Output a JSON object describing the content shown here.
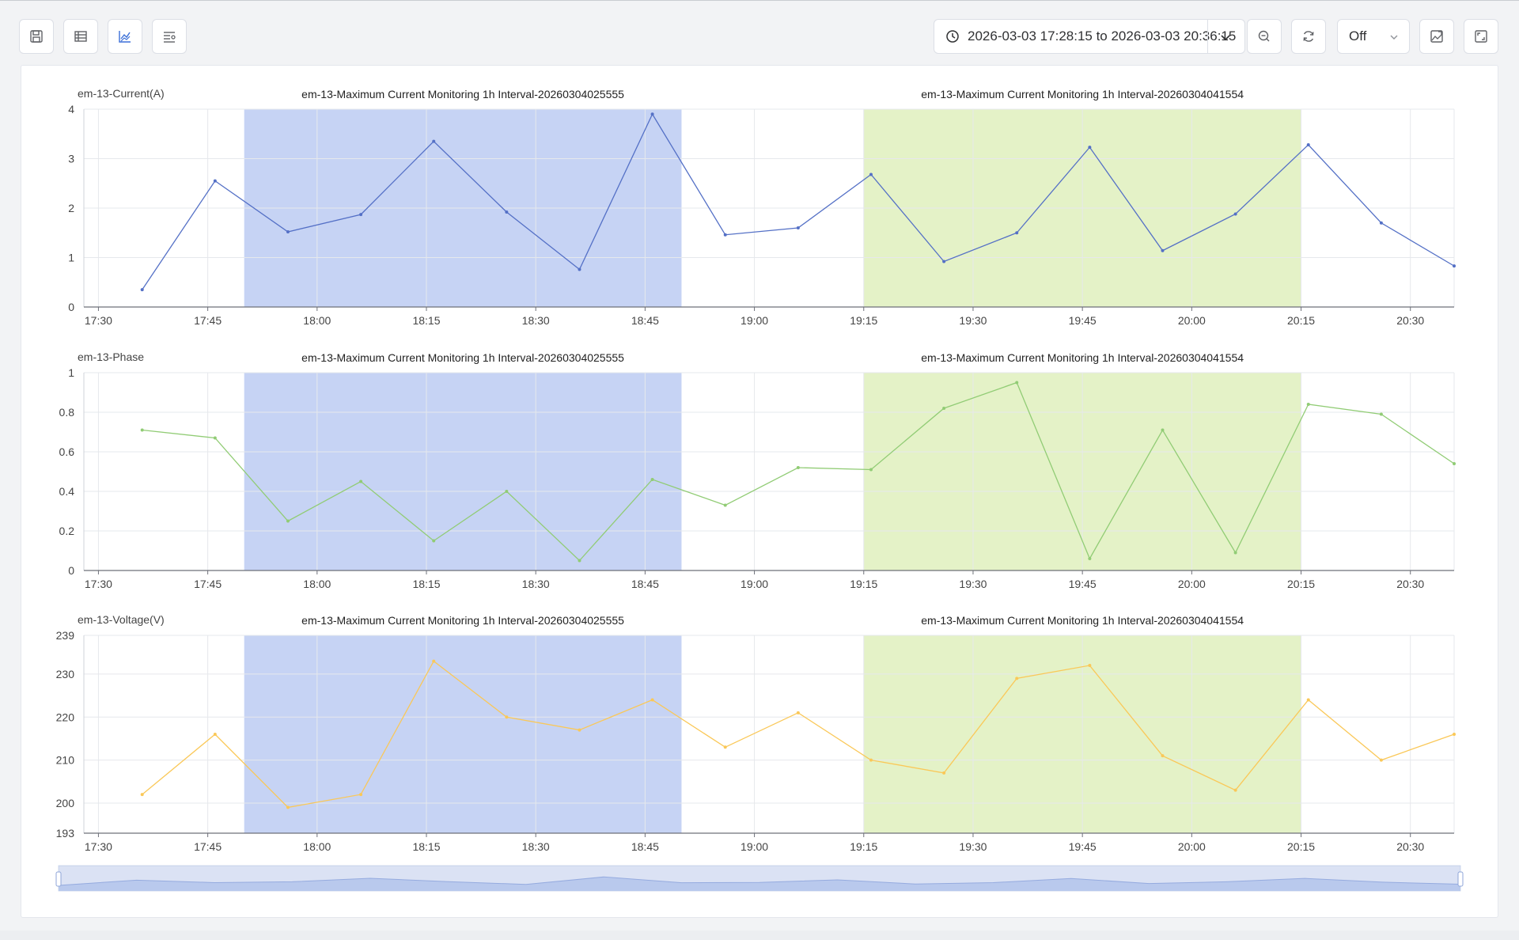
{
  "toolbar": {
    "buttons": [
      "save-icon",
      "table-icon",
      "line-chart-icon",
      "list-settings-icon"
    ],
    "time_range": "2026-03-03 17:28:15 to 2026-03-03 20:36:15",
    "refresh_interval": "Off",
    "right_buttons": [
      "zoom-out-icon",
      "refresh-icon",
      "export-image-icon",
      "fullscreen-icon"
    ]
  },
  "chart_data": [
    {
      "type": "line",
      "ylabel": "em-13-Current(A)",
      "ylim": [
        0,
        4
      ],
      "yticks": [
        "0",
        "1",
        "2",
        "3",
        "4"
      ],
      "xlim": [
        "17:28",
        "20:36"
      ],
      "xticks": [
        "17:30",
        "17:45",
        "18:00",
        "18:15",
        "18:30",
        "18:45",
        "19:00",
        "19:15",
        "19:30",
        "19:45",
        "20:00",
        "20:15",
        "20:30"
      ],
      "grid": true,
      "color": "#5470c6",
      "x": [
        "17:36",
        "17:46",
        "17:56",
        "18:06",
        "18:16",
        "18:26",
        "18:36",
        "18:46",
        "18:56",
        "19:06",
        "19:16",
        "19:26",
        "19:36",
        "19:46",
        "19:56",
        "20:06",
        "20:16",
        "20:26",
        "20:36"
      ],
      "values": [
        0.35,
        2.55,
        1.52,
        1.87,
        3.35,
        1.92,
        0.76,
        3.9,
        1.46,
        1.6,
        2.68,
        0.92,
        1.5,
        3.23,
        1.14,
        1.88,
        3.28,
        1.7,
        0.83
      ],
      "mark_areas": [
        {
          "label": "em-13-Maximum Current Monitoring 1h Interval-20260304025555",
          "from": "17:50",
          "to": "18:50",
          "color": "#c6d3f4"
        },
        {
          "label": "em-13-Maximum Current Monitoring 1h Interval-20260304041554",
          "from": "19:15",
          "to": "20:15",
          "color": "#e4f2c7"
        }
      ]
    },
    {
      "type": "line",
      "ylabel": "em-13-Phase",
      "ylim": [
        0,
        1
      ],
      "yticks": [
        "0",
        "0.2",
        "0.4",
        "0.6",
        "0.8",
        "1"
      ],
      "xlim": [
        "17:28",
        "20:36"
      ],
      "xticks": [
        "17:30",
        "17:45",
        "18:00",
        "18:15",
        "18:30",
        "18:45",
        "19:00",
        "19:15",
        "19:30",
        "19:45",
        "20:00",
        "20:15",
        "20:30"
      ],
      "grid": true,
      "color": "#91cc75",
      "x": [
        "17:36",
        "17:46",
        "17:56",
        "18:06",
        "18:16",
        "18:26",
        "18:36",
        "18:46",
        "18:56",
        "19:06",
        "19:16",
        "19:26",
        "19:36",
        "19:46",
        "19:56",
        "20:06",
        "20:16",
        "20:26",
        "20:36"
      ],
      "values": [
        0.71,
        0.67,
        0.25,
        0.45,
        0.15,
        0.4,
        0.05,
        0.46,
        0.33,
        0.52,
        0.51,
        0.82,
        0.95,
        0.06,
        0.71,
        0.09,
        0.84,
        0.79,
        0.54
      ],
      "mark_areas": [
        {
          "label": "em-13-Maximum Current Monitoring 1h Interval-20260304025555",
          "from": "17:50",
          "to": "18:50",
          "color": "#c6d3f4"
        },
        {
          "label": "em-13-Maximum Current Monitoring 1h Interval-20260304041554",
          "from": "19:15",
          "to": "20:15",
          "color": "#e4f2c7"
        }
      ]
    },
    {
      "type": "line",
      "ylabel": "em-13-Voltage(V)",
      "ylim": [
        193,
        239
      ],
      "yticks": [
        "193",
        "200",
        "210",
        "220",
        "230",
        "239"
      ],
      "xlim": [
        "17:28",
        "20:36"
      ],
      "xticks": [
        "17:30",
        "17:45",
        "18:00",
        "18:15",
        "18:30",
        "18:45",
        "19:00",
        "19:15",
        "19:30",
        "19:45",
        "20:00",
        "20:15",
        "20:30"
      ],
      "grid": true,
      "color": "#fac858",
      "x": [
        "17:36",
        "17:46",
        "17:56",
        "18:06",
        "18:16",
        "18:26",
        "18:36",
        "18:46",
        "18:56",
        "19:06",
        "19:16",
        "19:26",
        "19:36",
        "19:46",
        "19:56",
        "20:06",
        "20:16",
        "20:26",
        "20:36"
      ],
      "values": [
        202,
        216,
        199,
        202,
        233,
        220,
        217,
        224,
        213,
        221,
        210,
        207,
        229,
        232,
        211,
        203,
        224,
        210,
        216
      ],
      "mark_areas": [
        {
          "label": "em-13-Maximum Current Monitoring 1h Interval-20260304025555",
          "from": "17:50",
          "to": "18:50",
          "color": "#c6d3f4"
        },
        {
          "label": "em-13-Maximum Current Monitoring 1h Interval-20260304041554",
          "from": "19:15",
          "to": "20:15",
          "color": "#e4f2c7"
        }
      ]
    }
  ],
  "data_zoom": {
    "start_percent": 0,
    "end_percent": 100,
    "color": "#5470c6"
  }
}
